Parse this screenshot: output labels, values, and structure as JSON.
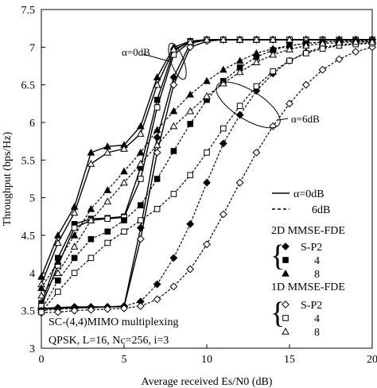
{
  "chart_data": {
    "type": "line",
    "xlabel": "Average received Es/N0 (dB)",
    "ylabel": "Throughput (bps/Hz)",
    "xlim": [
      0,
      20
    ],
    "ylim": [
      3,
      7.5
    ],
    "xticks": [
      0,
      5,
      10,
      15,
      20
    ],
    "yticks": [
      3,
      3.5,
      4,
      4.5,
      5,
      5.5,
      6,
      6.5,
      7,
      7.5
    ],
    "x": [
      0,
      1,
      2,
      3,
      4,
      5,
      6,
      7,
      8,
      9,
      10,
      11,
      12,
      13,
      14,
      15,
      16,
      17,
      18,
      19,
      20
    ],
    "grid": false,
    "series": [
      {
        "name": "2D S-P2 α=0dB",
        "marker": "diamond-filled",
        "dash": "solid",
        "values": [
          3.53,
          3.54,
          3.55,
          3.55,
          3.55,
          3.56,
          4.6,
          5.8,
          6.6,
          7.05,
          7.1,
          7.1,
          7.1,
          7.1,
          7.1,
          7.1,
          7.1,
          7.1,
          7.1,
          7.1,
          7.1
        ]
      },
      {
        "name": "2D 4 α=0dB",
        "marker": "square-filled",
        "dash": "solid",
        "values": [
          3.6,
          4.2,
          4.65,
          4.72,
          4.73,
          4.75,
          5.4,
          6.3,
          6.95,
          7.08,
          7.1,
          7.1,
          7.1,
          7.1,
          7.1,
          7.1,
          7.1,
          7.1,
          7.1,
          7.1,
          7.1
        ]
      },
      {
        "name": "2D 8 α=0dB",
        "marker": "triangle-filled",
        "dash": "solid",
        "values": [
          3.95,
          4.5,
          4.88,
          5.6,
          5.68,
          5.7,
          5.95,
          6.6,
          7.0,
          7.08,
          7.1,
          7.1,
          7.1,
          7.1,
          7.1,
          7.1,
          7.1,
          7.1,
          7.1,
          7.1,
          7.1
        ]
      },
      {
        "name": "1D S-P2 α=0dB",
        "marker": "diamond-open",
        "dash": "solid",
        "values": [
          3.52,
          3.53,
          3.54,
          3.54,
          3.55,
          3.55,
          4.45,
          5.6,
          6.5,
          7.0,
          7.08,
          7.1,
          7.1,
          7.1,
          7.1,
          7.1,
          7.1,
          7.1,
          7.1,
          7.1,
          7.1
        ]
      },
      {
        "name": "1D 4 α=0dB",
        "marker": "square-open",
        "dash": "solid",
        "values": [
          3.56,
          4.1,
          4.6,
          4.7,
          4.72,
          4.74,
          5.25,
          6.2,
          6.9,
          7.07,
          7.1,
          7.1,
          7.1,
          7.1,
          7.1,
          7.1,
          7.1,
          7.1,
          7.1,
          7.1,
          7.1
        ]
      },
      {
        "name": "1D 8 α=0dB",
        "marker": "triangle-open",
        "dash": "solid",
        "values": [
          3.85,
          4.4,
          4.8,
          5.45,
          5.6,
          5.65,
          5.85,
          6.5,
          6.97,
          7.07,
          7.1,
          7.1,
          7.1,
          7.1,
          7.1,
          7.1,
          7.1,
          7.1,
          7.1,
          7.1,
          7.1
        ]
      },
      {
        "name": "2D S-P2 α=6dB",
        "marker": "diamond-filled",
        "dash": "dashed",
        "values": [
          3.5,
          3.52,
          3.53,
          3.54,
          3.55,
          3.56,
          3.62,
          3.85,
          4.2,
          4.65,
          5.2,
          5.72,
          6.1,
          6.42,
          6.65,
          6.82,
          6.93,
          7.0,
          7.03,
          7.05,
          7.06
        ]
      },
      {
        "name": "2D 4 α=6dB",
        "marker": "square-filled",
        "dash": "dashed",
        "values": [
          3.5,
          3.9,
          4.2,
          4.45,
          4.55,
          4.7,
          4.9,
          5.25,
          5.62,
          5.98,
          6.3,
          6.55,
          6.73,
          6.87,
          6.96,
          7.02,
          7.05,
          7.07,
          7.08,
          7.08,
          7.08
        ]
      },
      {
        "name": "2D 8 α=6dB",
        "marker": "triangle-filled",
        "dash": "dashed",
        "values": [
          3.8,
          4.15,
          4.5,
          4.85,
          5.1,
          5.35,
          5.6,
          5.9,
          6.15,
          6.37,
          6.55,
          6.7,
          6.82,
          6.92,
          6.98,
          7.02,
          7.05,
          7.07,
          7.08,
          7.08,
          7.08
        ]
      },
      {
        "name": "1D S-P2 α=6dB",
        "marker": "diamond-open",
        "dash": "dashed",
        "values": [
          3.47,
          3.48,
          3.5,
          3.51,
          3.52,
          3.53,
          3.56,
          3.65,
          3.82,
          4.05,
          4.38,
          4.78,
          5.2,
          5.6,
          5.95,
          6.25,
          6.5,
          6.7,
          6.84,
          6.94,
          7.0
        ]
      },
      {
        "name": "1D 4 α=6dB",
        "marker": "square-open",
        "dash": "dashed",
        "values": [
          3.48,
          3.75,
          4.0,
          4.2,
          4.4,
          4.55,
          4.7,
          4.85,
          5.05,
          5.3,
          5.6,
          5.92,
          6.22,
          6.48,
          6.68,
          6.82,
          6.92,
          6.98,
          7.02,
          7.04,
          7.05
        ]
      },
      {
        "name": "1D 8 α=6dB",
        "marker": "triangle-open",
        "dash": "dashed",
        "values": [
          3.7,
          4.0,
          4.35,
          4.7,
          4.95,
          5.2,
          5.45,
          5.7,
          5.95,
          6.15,
          6.35,
          6.52,
          6.67,
          6.8,
          6.9,
          6.97,
          7.02,
          7.05,
          7.06,
          7.07,
          7.07
        ]
      }
    ],
    "annotations": {
      "alpha0": "α=0dB",
      "alpha6": "α=6dB",
      "system1": "SC-(4,4)MIMO multiplexing",
      "system2": "QPSK, L=16, Nc=256, i=3"
    },
    "legend": {
      "line_solid": "α=0dB",
      "line_dashed": "6dB",
      "group2d": "2D MMSE-FDE",
      "group1d": "1D MMSE-FDE",
      "labels": [
        "S-P2",
        "4",
        "8"
      ]
    }
  }
}
